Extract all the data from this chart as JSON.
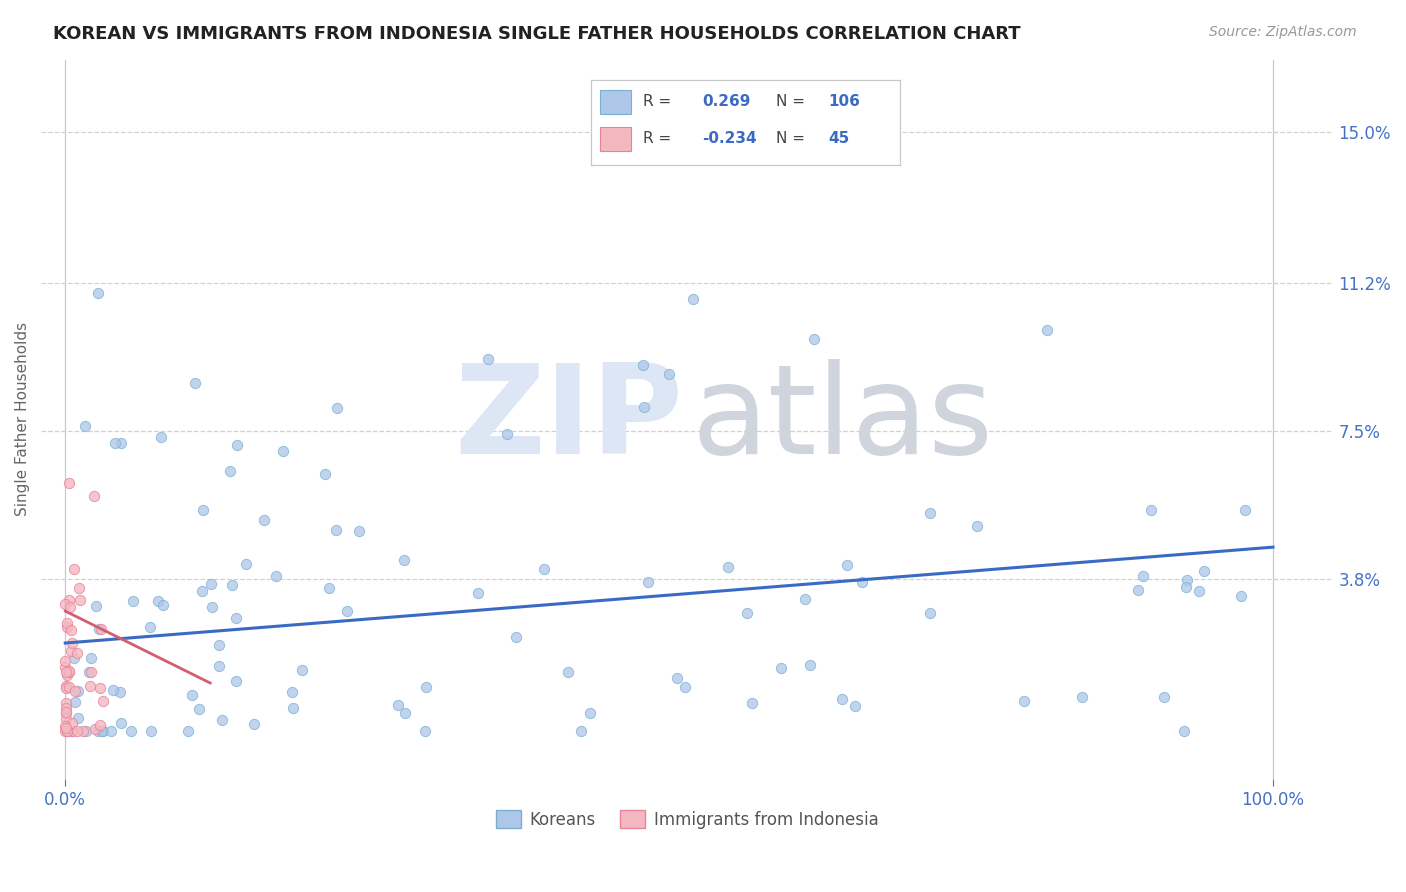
{
  "title": "KOREAN VS IMMIGRANTS FROM INDONESIA SINGLE FATHER HOUSEHOLDS CORRELATION CHART",
  "source": "Source: ZipAtlas.com",
  "ylabel": "Single Father Households",
  "ytick_labels": [
    "15.0%",
    "11.2%",
    "7.5%",
    "3.8%"
  ],
  "ytick_values": [
    0.15,
    0.112,
    0.075,
    0.038
  ],
  "xtick_labels": [
    "0.0%",
    "100.0%"
  ],
  "xlim": [
    -0.02,
    1.05
  ],
  "ylim": [
    -0.012,
    0.168
  ],
  "scatter_korean_color": "#aec6e8",
  "scatter_korean_edge": "#7aafd4",
  "scatter_indonesia_color": "#f4b8c1",
  "scatter_indonesia_edge": "#e8829a",
  "line_korean_color": "#3a6bc4",
  "line_indonesia_color": "#d06070",
  "title_color": "#222222",
  "axis_color": "#4472c4",
  "grid_color": "#cccccc",
  "background_color": "#ffffff",
  "title_fontsize": 13,
  "source_fontsize": 10,
  "legend_korean_color": "#aec6e8",
  "legend_korea_edge": "#7aafd4",
  "legend_indo_color": "#f4b8c1",
  "legend_indo_edge": "#e8829a",
  "korean_line_x0": 0.0,
  "korean_line_y0": 0.022,
  "korean_line_x1": 1.0,
  "korean_line_y1": 0.046,
  "indo_line_x0": 0.0,
  "indo_line_y0": 0.03,
  "indo_line_x1": 0.12,
  "indo_line_y1": 0.012
}
